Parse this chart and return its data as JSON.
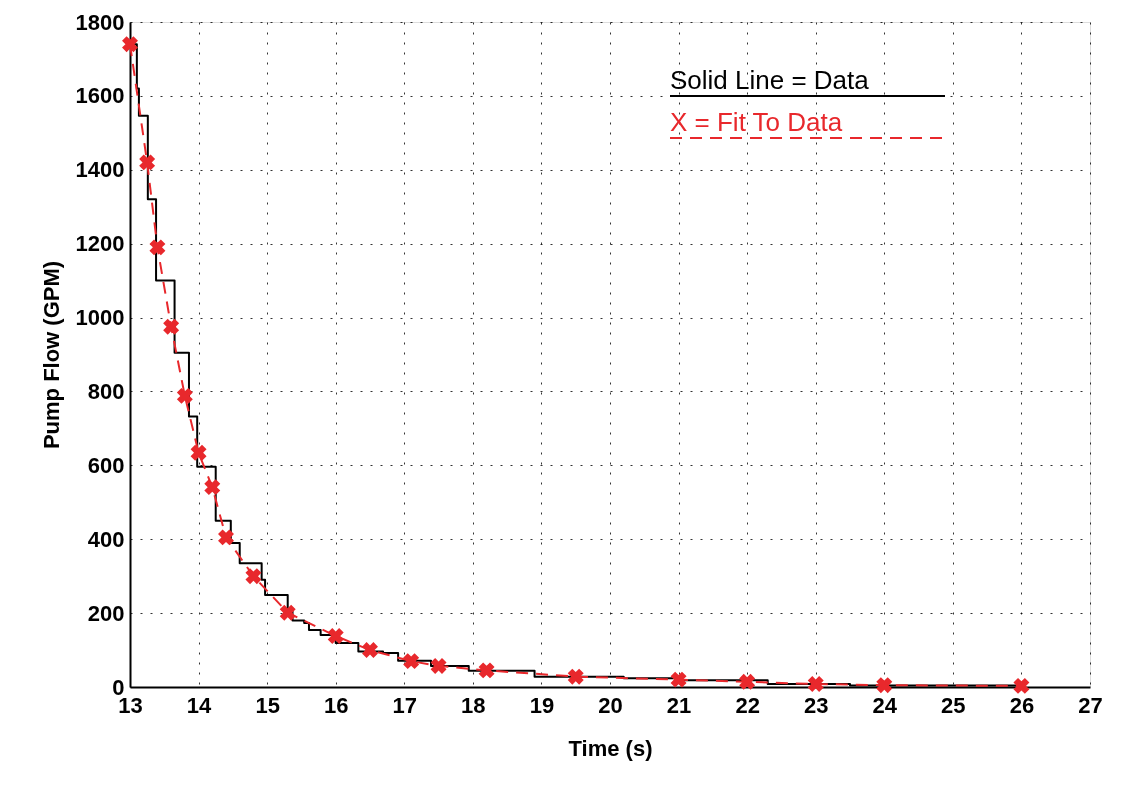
{
  "chart_data": {
    "type": "line",
    "xlabel": "Time (s)",
    "ylabel": "Pump Flow (GPM)",
    "xlim": [
      13,
      27
    ],
    "xticks": [
      13,
      14,
      15,
      16,
      17,
      18,
      19,
      20,
      21,
      22,
      23,
      24,
      25,
      26,
      27
    ],
    "ylim": [
      0,
      1800
    ],
    "yticks": [
      0,
      200,
      400,
      600,
      800,
      1000,
      1200,
      1400,
      1600,
      1800
    ],
    "grid": true,
    "legend": "top right",
    "series": [
      {
        "name": "Solid Line = Data",
        "type": "step",
        "color": "#000000",
        "marker": "none",
        "line_style": "solid",
        "x": [
          13.0,
          13.1,
          13.13,
          13.17,
          13.26,
          13.33,
          13.38,
          13.5,
          13.65,
          13.79,
          13.86,
          13.94,
          13.98,
          14.2,
          14.25,
          14.39,
          14.47,
          14.6,
          14.75,
          14.92,
          14.97,
          15.18,
          15.3,
          15.37,
          15.54,
          15.61,
          15.78,
          16.0,
          16.33,
          16.69,
          16.91,
          17.39,
          17.94,
          18.9,
          20.2,
          21.0,
          22.3,
          23.5,
          26.0
        ],
        "values": [
          1740,
          1620,
          1546,
          1546,
          1320,
          1320,
          1100,
          1100,
          905,
          905,
          732,
          732,
          596,
          596,
          450,
          450,
          390,
          335,
          335,
          290,
          249,
          249,
          210,
          180,
          173,
          154,
          141,
          119,
          96,
          92,
          71,
          57,
          44,
          28,
          24,
          18,
          8,
          4,
          3
        ]
      },
      {
        "name": "X = Fit To Data",
        "type": "line",
        "color": "#e8282c",
        "marker": "cross",
        "line_style": "dashed",
        "x": [
          13.0,
          13.25,
          13.4,
          13.6,
          13.8,
          14.0,
          14.2,
          14.4,
          14.8,
          15.3,
          16.0,
          16.5,
          17.1,
          17.5,
          18.2,
          19.5,
          21.0,
          22.0,
          23.0,
          24.0,
          26.0
        ],
        "values": [
          1740,
          1420,
          1190,
          975,
          788,
          634,
          541,
          405,
          300,
          201,
          138,
          100,
          70,
          57,
          45,
          28,
          20,
          14,
          8,
          5,
          3
        ]
      }
    ]
  }
}
